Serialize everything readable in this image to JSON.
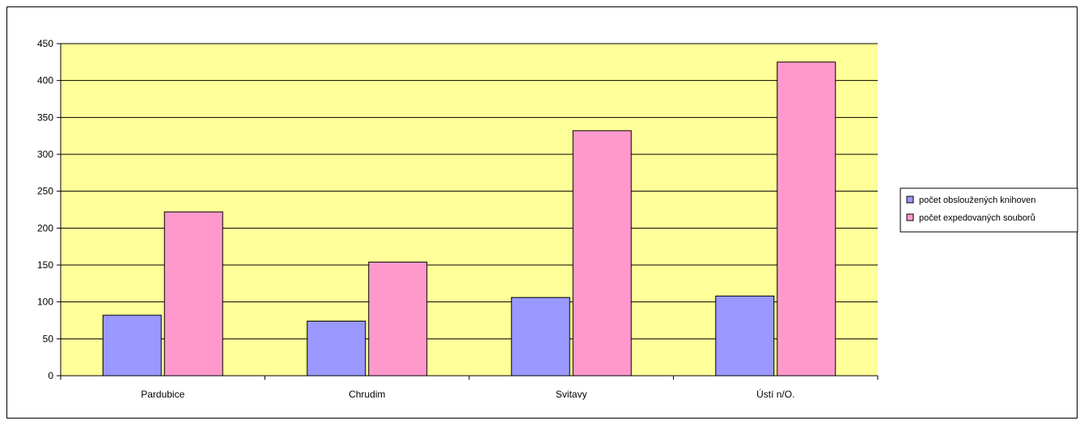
{
  "chart_data": {
    "type": "bar",
    "title": "",
    "xlabel": "",
    "ylabel": "",
    "categories": [
      "Pardubice",
      "Chrudim",
      "Svitavy",
      "Ústí n/O."
    ],
    "series": [
      {
        "name": "počet obsloužených knihoven",
        "values": [
          82,
          74,
          106,
          108
        ],
        "color": "#9999ff"
      },
      {
        "name": "počet expedovaných souborů",
        "values": [
          222,
          154,
          332,
          425
        ],
        "color": "#ff99cc"
      }
    ],
    "ylim": [
      0,
      450
    ],
    "yticks": [
      0,
      50,
      100,
      150,
      200,
      250,
      300,
      350,
      400,
      450
    ],
    "grid": true,
    "plot_background": "#ffff99",
    "legend_position": "right"
  }
}
